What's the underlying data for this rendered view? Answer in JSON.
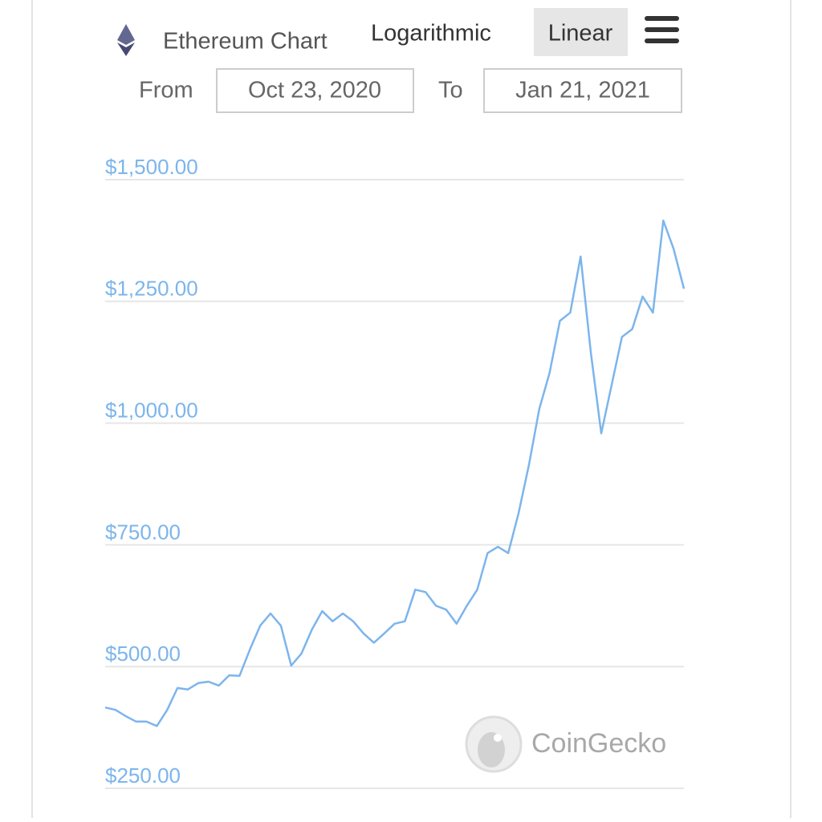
{
  "chart_data": {
    "type": "line",
    "title": "Ethereum Chart",
    "values": [
      416,
      411,
      398,
      387,
      387,
      378,
      411,
      456,
      453,
      466,
      469,
      461,
      482,
      481,
      535,
      584,
      609,
      584,
      502,
      527,
      576,
      614,
      593,
      609,
      593,
      568,
      549,
      568,
      588,
      593,
      658,
      653,
      625,
      617,
      588,
      625,
      658,
      733,
      746,
      733,
      815,
      914,
      1029,
      1103,
      1210,
      1227,
      1342,
      1144,
      979,
      1078,
      1177,
      1193,
      1260,
      1227,
      1416,
      1358,
      1276
    ],
    "color": "#7cb5ec",
    "ylim": [
      250,
      1500
    ],
    "yticks": [
      {
        "value": 250,
        "label": "$250.00"
      },
      {
        "value": 500,
        "label": "$500.00"
      },
      {
        "value": 750,
        "label": "$750.00"
      },
      {
        "value": 1000,
        "label": "$1,000.00"
      },
      {
        "value": 1250,
        "label": "$1,250.00"
      },
      {
        "value": 1500,
        "label": "$1,500.00"
      }
    ],
    "grid": true,
    "credit": "CoinGecko"
  },
  "controls": {
    "scale_options": [
      "Logarithmic",
      "Linear"
    ],
    "from_label": "From",
    "from_date": "Oct 23, 2020",
    "to_label": "To",
    "to_date": "Jan 21, 2021"
  }
}
